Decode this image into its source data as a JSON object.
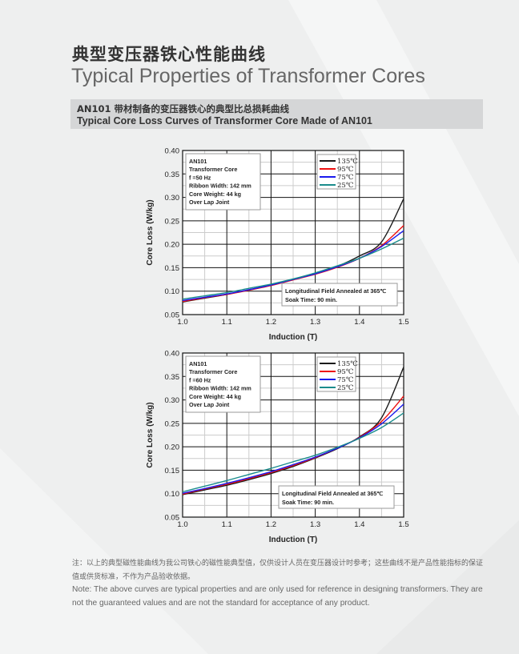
{
  "header": {
    "title_zh": "典型变压器铁心性能曲线",
    "title_en": "Typical Properties of Transformer Cores"
  },
  "section": {
    "title_zh": "AN101 带材制备的变压器铁心的典型比总损耗曲线",
    "title_en": "Typical Core Loss Curves of Transformer Core Made of AN101"
  },
  "colors": {
    "135": "#1a1a1a",
    "95": "#ee1111",
    "75": "#1a1aee",
    "25": "#1a8c8c"
  },
  "chart_data": [
    {
      "type": "line",
      "title": "",
      "xlabel": "Induction (T)",
      "ylabel": "Core Loss (W/kg)",
      "xlim": [
        1.0,
        1.5
      ],
      "ylim": [
        0.05,
        0.4
      ],
      "xticks": [
        "1.0",
        "1.1",
        "1.2",
        "1.3",
        "1.4",
        "1.5"
      ],
      "yticks": [
        "0.05",
        "0.10",
        "0.15",
        "0.20",
        "0.25",
        "0.30",
        "0.35",
        "0.40"
      ],
      "grid": true,
      "legend_position": "top-right",
      "info_box": [
        "AN101",
        "Transformer Core",
        "f =50 Hz",
        "Ribbon Width: 142 mm",
        "Core Weight: 44 kg",
        "Over Lap Joint"
      ],
      "annotation": [
        "Longitudinal Field Annealed at 365℃",
        "Soak Time: 90 min."
      ],
      "x": [
        1.0,
        1.05,
        1.1,
        1.15,
        1.2,
        1.25,
        1.3,
        1.35,
        1.4,
        1.45,
        1.5
      ],
      "series": [
        {
          "name": "135℃",
          "key": "135",
          "values": [
            0.077,
            0.085,
            0.093,
            0.103,
            0.113,
            0.125,
            0.138,
            0.153,
            0.175,
            0.205,
            0.297
          ]
        },
        {
          "name": "95℃",
          "key": "95",
          "values": [
            0.078,
            0.086,
            0.093,
            0.102,
            0.112,
            0.124,
            0.136,
            0.151,
            0.17,
            0.197,
            0.24
          ]
        },
        {
          "name": "75℃",
          "key": "75",
          "values": [
            0.08,
            0.087,
            0.094,
            0.103,
            0.113,
            0.125,
            0.137,
            0.152,
            0.17,
            0.195,
            0.229
          ]
        },
        {
          "name": "25℃",
          "key": "25",
          "values": [
            0.083,
            0.09,
            0.097,
            0.106,
            0.115,
            0.126,
            0.139,
            0.154,
            0.17,
            0.19,
            0.213
          ]
        }
      ]
    },
    {
      "type": "line",
      "title": "",
      "xlabel": "Induction (T)",
      "ylabel": "Core Loss (W/kg)",
      "xlim": [
        1.0,
        1.5
      ],
      "ylim": [
        0.05,
        0.4
      ],
      "xticks": [
        "1.0",
        "1.1",
        "1.2",
        "1.3",
        "1.4",
        "1.5"
      ],
      "yticks": [
        "0.05",
        "0.10",
        "0.15",
        "0.20",
        "0.25",
        "0.30",
        "0.35",
        "0.40"
      ],
      "grid": true,
      "legend_position": "top-right",
      "info_box": [
        "AN101",
        "Transformer Core",
        "f =60 Hz",
        "Ribbon Width: 142 mm",
        "Core Weight: 44 kg",
        "Over Lap Joint"
      ],
      "annotation": [
        "Longitudinal Field Annealed at 365℃",
        "Soak Time: 90 min."
      ],
      "x": [
        1.0,
        1.05,
        1.1,
        1.15,
        1.2,
        1.25,
        1.3,
        1.35,
        1.4,
        1.45,
        1.5
      ],
      "series": [
        {
          "name": "135℃",
          "key": "135",
          "values": [
            0.098,
            0.108,
            0.118,
            0.13,
            0.143,
            0.158,
            0.176,
            0.196,
            0.221,
            0.262,
            0.37
          ]
        },
        {
          "name": "95℃",
          "key": "95",
          "values": [
            0.099,
            0.11,
            0.12,
            0.132,
            0.145,
            0.16,
            0.177,
            0.197,
            0.22,
            0.254,
            0.308
          ]
        },
        {
          "name": "75℃",
          "key": "75",
          "values": [
            0.101,
            0.111,
            0.122,
            0.134,
            0.147,
            0.162,
            0.178,
            0.197,
            0.219,
            0.249,
            0.291
          ]
        },
        {
          "name": "25℃",
          "key": "25",
          "values": [
            0.104,
            0.116,
            0.128,
            0.141,
            0.154,
            0.168,
            0.182,
            0.199,
            0.218,
            0.241,
            0.272
          ]
        }
      ]
    }
  ],
  "notes": {
    "zh": "注：以上的典型磁性能曲线为我公司铁心的磁性能典型值，仅供设计人员在变压器设计时参考；这些曲线不是产品性能指标的保证值或供货标准，不作为产品验收依据。",
    "en": "Note: The above curves are typical properties and are only used for reference in designing transformers. They are not the guaranteed values and are not the standard for acceptance of any product."
  }
}
